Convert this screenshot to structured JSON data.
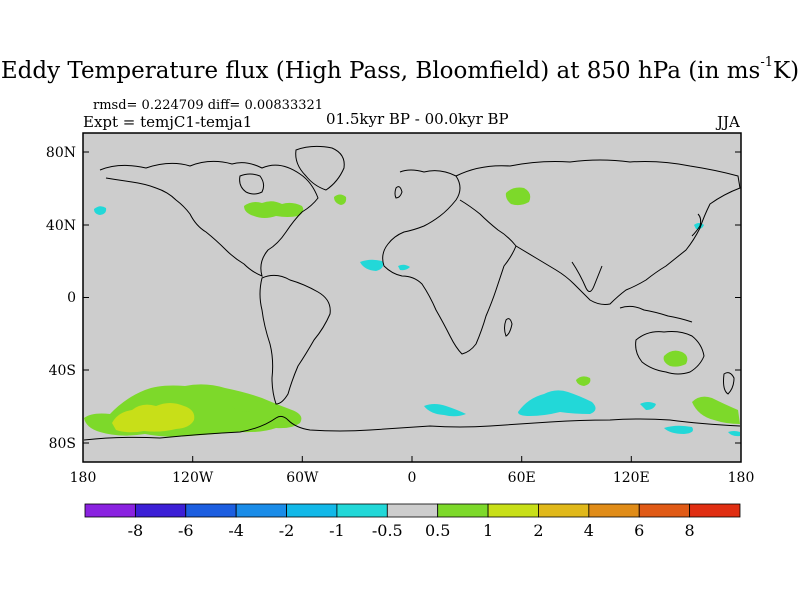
{
  "title": {
    "main": "Eddy Temperature flux (High Pass, Bloomfield) at 850 hPa (in ms",
    "exponent": "-1",
    "end": "K)"
  },
  "stats": "rmsd= 0.224709 diff= 0.00833321",
  "experiment": "Expt = temjC1-temja1",
  "period": "01.5kyr BP - 00.0kyr BP",
  "season": "JJA",
  "map": {
    "lon_ticks": [
      "180",
      "120W",
      "60W",
      "0",
      "60E",
      "120E",
      "180"
    ],
    "lat_ticks": [
      "80N",
      "40N",
      "0",
      "40S",
      "80S"
    ],
    "background_color": "#cdcdcd"
  },
  "colorbar": {
    "labels": [
      "-8",
      "-6",
      "-4",
      "-2",
      "-1",
      "-0.5",
      "0.5",
      "1",
      "2",
      "4",
      "6",
      "8"
    ],
    "colors": [
      "#8a22e0",
      "#3c1fd6",
      "#1c5ee0",
      "#1a8ce8",
      "#12b8e8",
      "#22d8d8",
      "#cdcdcd",
      "#7dd92a",
      "#c8df18",
      "#e0b81a",
      "#e08c18",
      "#e05a16",
      "#e02e12"
    ]
  },
  "features": {
    "positive": {
      "color": "#7dd92a"
    },
    "strong_positive": {
      "color": "#c8df18"
    },
    "negative": {
      "color": "#22d8d8"
    }
  }
}
